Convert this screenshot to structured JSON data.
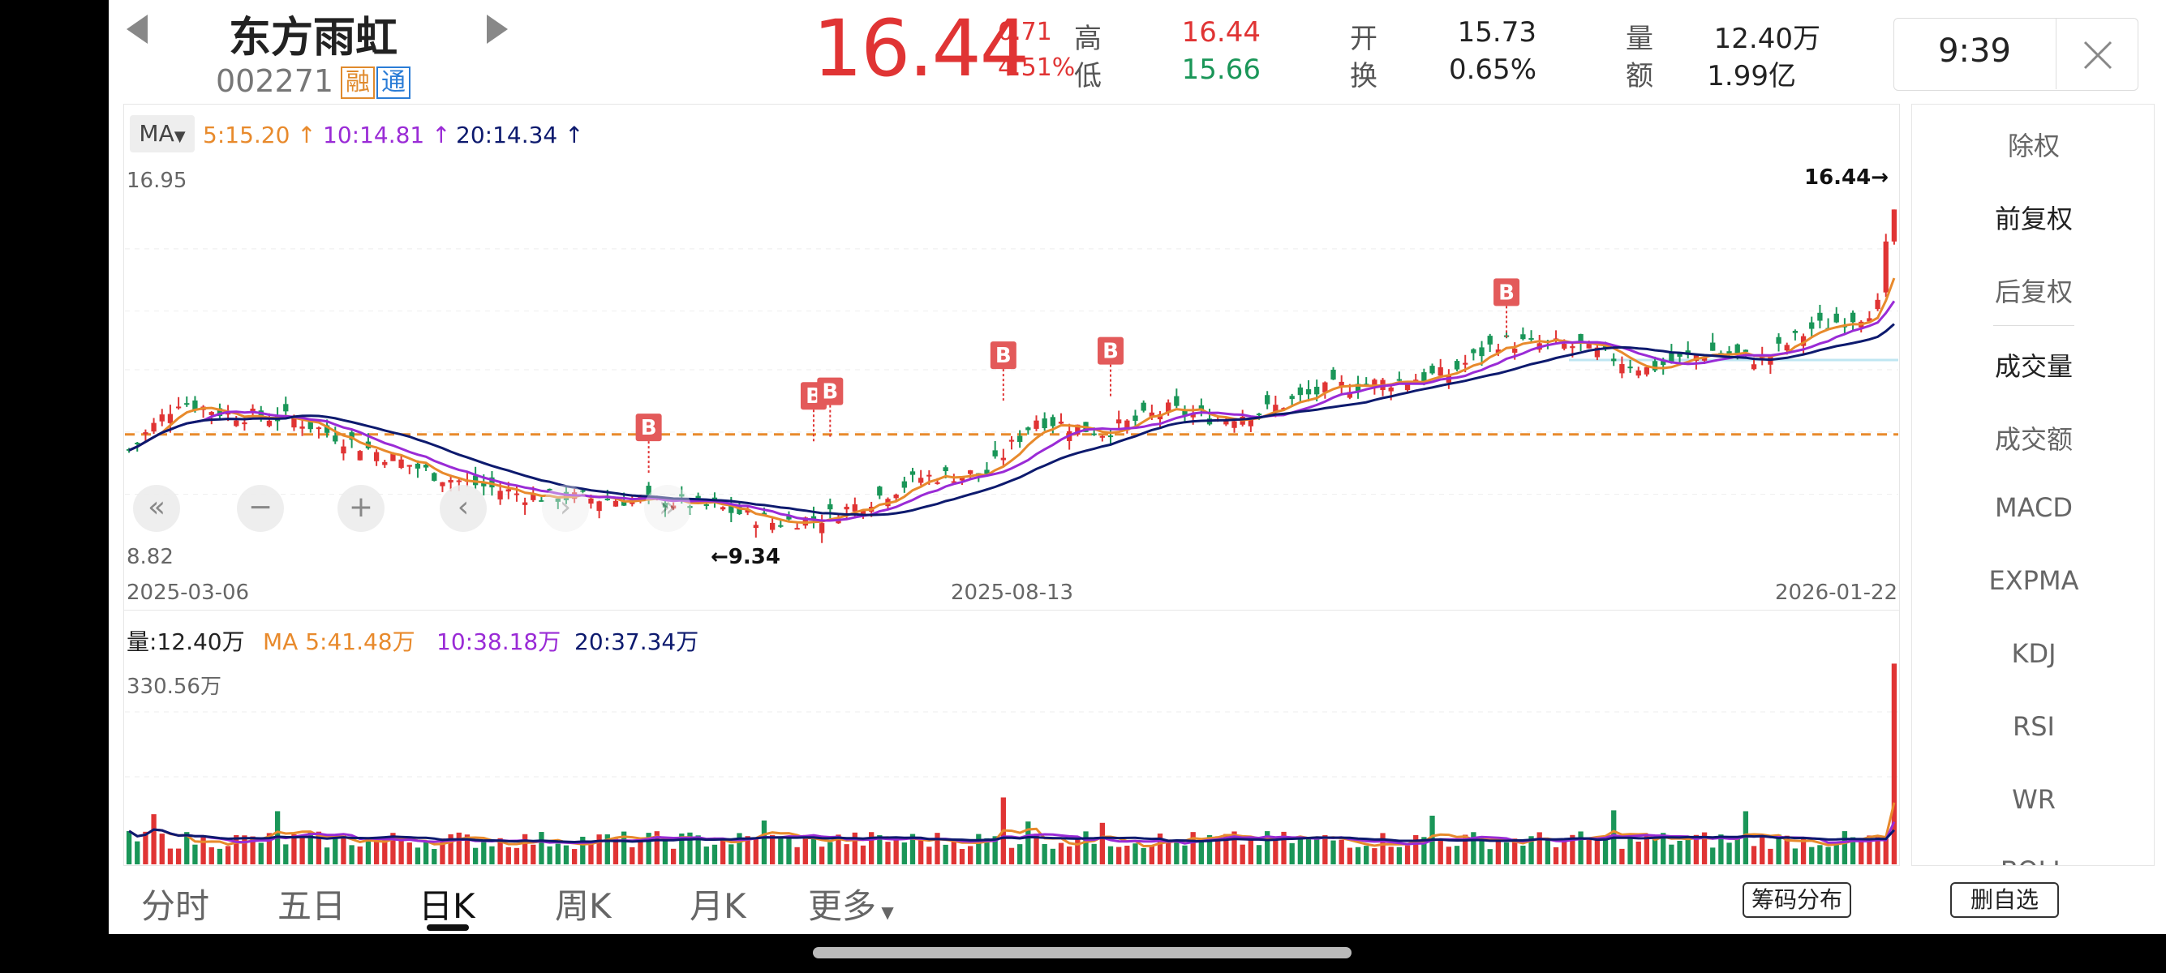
{
  "stock": {
    "name": "东方雨虹",
    "code": "002271",
    "badge_margin": "融",
    "badge_connect": "通",
    "price": "16.44",
    "change": "0.71",
    "change_pct": "4.51%"
  },
  "quote": {
    "high_label": "高",
    "high": "16.44",
    "low_label": "低",
    "low": "15.66",
    "open_label": "开",
    "open": "15.73",
    "turnover_label": "换",
    "turnover": "0.65%",
    "volume_label": "量",
    "volume": "12.40万",
    "amount_label": "额",
    "amount": "1.99亿"
  },
  "time": "9:39",
  "ma_selector": "MA",
  "ma": {
    "ma5": "5:15.20",
    "ma10": "10:14.81",
    "ma20": "20:14.34"
  },
  "price_axis": {
    "high": "16.95",
    "low": "8.82",
    "max_marker": "16.44→",
    "min_marker": "←9.34"
  },
  "dates": {
    "start": "2025-03-06",
    "mid": "2025-08-13",
    "end": "2026-01-22"
  },
  "buy_marker": "B",
  "volume_legend": {
    "vol": "量:12.40万",
    "ma5": "MA 5:41.48万",
    "ma10": "10:38.18万",
    "ma20": "20:37.34万"
  },
  "volume_axis_max": "330.56万",
  "side_menu": [
    "除权",
    "前复权",
    "后复权",
    "成交量",
    "成交额",
    "MACD",
    "EXPMA",
    "KDJ",
    "RSI",
    "WR",
    "BOLL"
  ],
  "tabs": [
    "分时",
    "五日",
    "日K",
    "周K",
    "月K",
    "更多"
  ],
  "buttons": {
    "chip": "筹码分布",
    "delete_watch": "删自选"
  },
  "colors": {
    "up": "#e03434",
    "down": "#1a9658",
    "ma5": "#e88a2c",
    "ma10": "#9a2bd6",
    "ma20": "#0d1a6e"
  },
  "chart_data": {
    "type": "candlestick",
    "x_range": [
      "2025-03-06",
      "2026-01-22"
    ],
    "ylim": [
      8.82,
      16.95
    ],
    "last_close": 16.44,
    "period_high": 16.44,
    "period_low": 9.34,
    "ma_values": {
      "MA5": 15.2,
      "MA10": 14.81,
      "MA20": 14.34
    },
    "volume_ylim_max_wan": 330.56,
    "volume_latest_wan": 12.4,
    "volume_ma_wan": {
      "MA5": 41.48,
      "MA10": 38.18,
      "MA20": 37.34
    }
  }
}
